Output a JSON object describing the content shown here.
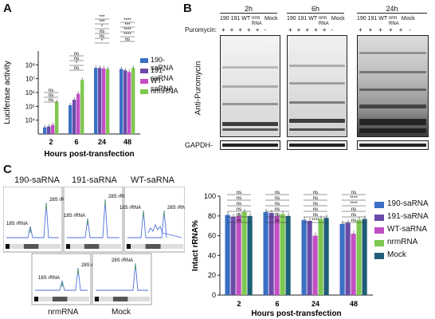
{
  "panels": {
    "a": "A",
    "b": "B",
    "c": "C"
  },
  "panel_a": {
    "ylabel": "Luciferase activity",
    "xlabel": "Hours post-transfection",
    "ytick_labels": [
      "10⁴",
      "10⁵",
      "10⁶",
      "10⁷",
      "10⁸"
    ],
    "legend": [
      "190-saRNA",
      "191-saRNA",
      "WT-saRNA",
      "nrmRNA"
    ],
    "sig_labels": [
      "ns",
      "ns",
      "ns",
      "ns",
      "*",
      "ns",
      "ns",
      "*",
      "ns",
      "ns",
      "*",
      "***",
      "***",
      "ns",
      "****",
      "****",
      "***",
      "****"
    ]
  },
  "panel_b": {
    "times": [
      "2h",
      "6h",
      "24h"
    ],
    "lanes": [
      "190",
      "191",
      "WT",
      "nrm\nRNA",
      "Mock"
    ],
    "puromycin_label": "Puromycin:",
    "puromycin_signs": [
      "+",
      "+",
      "+",
      "+",
      "+",
      "-"
    ],
    "antibody_label": "Anti-Puromycin",
    "gapdh_label": "GAPDH-"
  },
  "panel_c_left": {
    "traces": [
      {
        "title": "190-saRNA",
        "peaks": [
          "18S rRNA",
          "28S rRNA"
        ]
      },
      {
        "title": "191-saRNA",
        "peaks": [
          "18S rRNA",
          "28S rRNA"
        ]
      },
      {
        "title": "WT-saRNA",
        "peaks": [
          "18S rRNA",
          "28S rRNA"
        ]
      },
      {
        "title": "nrmRNA",
        "peaks": [
          "18S rRNA",
          "28S rRNA"
        ]
      },
      {
        "title": "Mock",
        "peaks": [
          "28S rRNA"
        ]
      }
    ]
  },
  "colors": {
    "s190": "#3a6fc4",
    "s191": "#6b4ba8",
    "wt": "#c24fc4",
    "nrm": "#7ec850",
    "mock": "#1f5e78"
  },
  "chart_data": [
    {
      "type": "bar",
      "title": "",
      "xlabel": "Hours post-transfection",
      "ylabel": "Luciferase activity",
      "yscale": "log",
      "ylim": [
        1000,
        1000000000
      ],
      "categories": [
        "2",
        "6",
        "24",
        "48"
      ],
      "series": [
        {
          "name": "190-saRNA",
          "values": [
            3000,
            120000,
            60000000,
            50000000
          ]
        },
        {
          "name": "191-saRNA",
          "values": [
            3500,
            300000,
            60000000,
            40000000
          ]
        },
        {
          "name": "WT-saRNA",
          "values": [
            4500,
            800000,
            55000000,
            30000000
          ]
        },
        {
          "name": "nrmRNA",
          "values": [
            200000,
            8000000,
            50000000,
            60000000
          ]
        }
      ],
      "legend_position": "right"
    },
    {
      "type": "bar",
      "title": "",
      "xlabel": "Hours post-transfection",
      "ylabel": "Intact rRNA%",
      "ylim": [
        0,
        100
      ],
      "yticks": [
        0,
        20,
        40,
        60,
        80,
        100
      ],
      "categories": [
        "2",
        "6",
        "24",
        "48"
      ],
      "series": [
        {
          "name": "190-saRNA",
          "values": [
            81,
            84,
            76,
            72
          ]
        },
        {
          "name": "191-saRNA",
          "values": [
            79,
            83,
            75,
            73
          ]
        },
        {
          "name": "WT-saRNA",
          "values": [
            80,
            80,
            60,
            62
          ]
        },
        {
          "name": "nrmRNA",
          "values": [
            84,
            82,
            77,
            76
          ]
        },
        {
          "name": "Mock",
          "values": [
            80,
            80,
            78,
            77
          ]
        }
      ],
      "legend_position": "right",
      "sig_labels": [
        "ns",
        "ns",
        "ns",
        "ns",
        "ns",
        "ns",
        "ns",
        "ns",
        "ns",
        "ns",
        "ns",
        "ns",
        "ns",
        "ns",
        "ns",
        "ns",
        "ns",
        "****",
        "ns",
        "****",
        "****",
        "ns",
        "ns",
        "ns",
        "*",
        "ns",
        "***"
      ]
    }
  ]
}
